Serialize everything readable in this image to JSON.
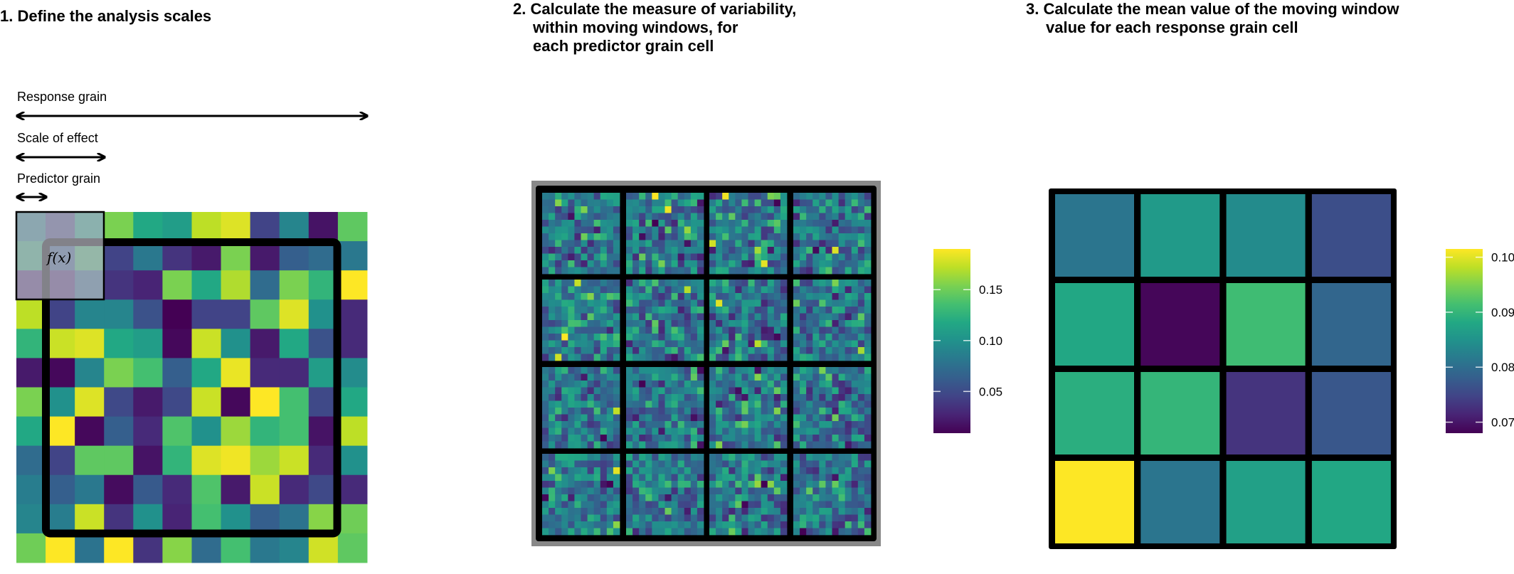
{
  "panel1": {
    "title": "1. Define the analysis scales",
    "labels": {
      "response_grain": "Response grain",
      "scale_of_effect": "Scale of effect",
      "predictor_grain": "Predictor grain"
    },
    "function_label": "f(x)",
    "grid_values": [
      [
        0.45,
        0.2,
        0.6,
        0.8,
        0.6,
        0.55,
        0.9,
        0.95,
        0.2,
        0.45,
        0.05,
        0.75
      ],
      [
        0.65,
        0.3,
        0.7,
        0.2,
        0.4,
        0.15,
        0.07,
        0.8,
        0.07,
        0.3,
        0.35,
        0.4
      ],
      [
        0.1,
        0.1,
        0.35,
        0.15,
        0.1,
        0.8,
        0.6,
        0.88,
        0.35,
        0.8,
        0.65,
        1.0
      ],
      [
        0.9,
        0.2,
        0.45,
        0.45,
        0.25,
        0.0,
        0.2,
        0.2,
        0.75,
        0.95,
        0.5,
        0.12
      ],
      [
        0.65,
        0.92,
        0.95,
        0.6,
        0.55,
        0.02,
        0.92,
        0.5,
        0.07,
        0.6,
        0.25,
        0.12
      ],
      [
        0.07,
        0.02,
        0.45,
        0.8,
        0.7,
        0.3,
        0.6,
        0.97,
        0.12,
        0.12,
        0.55,
        0.48
      ],
      [
        0.8,
        0.5,
        0.95,
        0.22,
        0.07,
        0.22,
        0.92,
        0.02,
        1.0,
        0.7,
        0.22,
        0.6
      ],
      [
        0.6,
        1.0,
        0.02,
        0.3,
        0.12,
        0.72,
        0.5,
        0.85,
        0.65,
        0.7,
        0.05,
        0.9
      ],
      [
        0.35,
        0.2,
        0.75,
        0.75,
        0.05,
        0.65,
        0.95,
        0.98,
        0.85,
        0.92,
        0.12,
        0.5
      ],
      [
        0.42,
        0.3,
        0.4,
        0.03,
        0.28,
        0.12,
        0.72,
        0.07,
        0.92,
        0.12,
        0.22,
        0.12
      ],
      [
        0.45,
        0.42,
        0.92,
        0.15,
        0.5,
        0.1,
        0.7,
        0.5,
        0.3,
        0.38,
        0.82,
        0.78
      ],
      [
        0.78,
        1.0,
        0.38,
        1.0,
        0.15,
        0.82,
        0.35,
        0.7,
        0.4,
        0.45,
        0.93,
        0.75
      ]
    ]
  },
  "panel2": {
    "title_lines": [
      "2. Calculate the measure of variability,",
      "within moving windows, for",
      "each predictor grain cell"
    ],
    "colorbar": {
      "range": [
        0.009,
        0.19
      ],
      "ticks": [
        {
          "value": 0.15,
          "label": "0.15"
        },
        {
          "value": 0.1,
          "label": "0.10"
        },
        {
          "value": 0.05,
          "label": "0.05"
        }
      ]
    }
  },
  "panel3": {
    "title_lines": [
      "3. Calculate the mean value of the moving window",
      "value for each response grain cell"
    ],
    "grid_values": [
      [
        0.081,
        0.086,
        0.084,
        0.076
      ],
      [
        0.088,
        0.0685,
        0.091,
        0.079
      ],
      [
        0.089,
        0.09,
        0.073,
        0.077
      ],
      [
        0.1015,
        0.081,
        0.087,
        0.088
      ]
    ],
    "colorbar": {
      "range": [
        0.068,
        0.1015
      ],
      "ticks": [
        {
          "value": 0.1,
          "label": "0.10"
        },
        {
          "value": 0.09,
          "label": "0.09"
        },
        {
          "value": 0.08,
          "label": "0.08"
        },
        {
          "value": 0.07,
          "label": "0.07"
        }
      ]
    }
  },
  "colors": {
    "colormap": "viridis",
    "frame": "#000000",
    "window_border": "#888888",
    "overlay": "#b4b4be"
  }
}
